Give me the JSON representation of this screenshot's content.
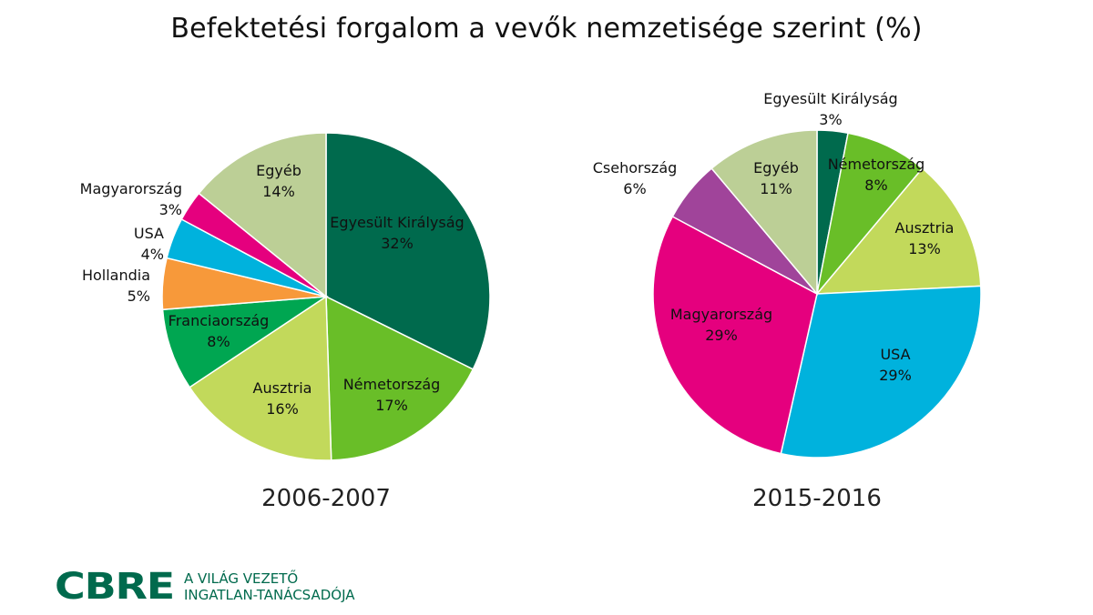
{
  "title": "Befektetési forgalom a vevők nemzetisége szerint (%)",
  "chart_data": [
    {
      "type": "pie",
      "title": "2006-2007",
      "slices": [
        {
          "label": "Egyesült Királyság",
          "value": 32,
          "color": "#006a4d"
        },
        {
          "label": "Németország",
          "value": 17,
          "color": "#69be28"
        },
        {
          "label": "Ausztria",
          "value": 16,
          "color": "#c2d95b"
        },
        {
          "label": "Franciaország",
          "value": 8,
          "color": "#00a651"
        },
        {
          "label": "Hollandia",
          "value": 5,
          "color": "#f7993a"
        },
        {
          "label": "USA",
          "value": 4,
          "color": "#00b2dd"
        },
        {
          "label": "Magyarország",
          "value": 3,
          "color": "#e5007e"
        },
        {
          "label": "Egyéb",
          "value": 14,
          "color": "#bccf96"
        }
      ]
    },
    {
      "type": "pie",
      "title": "2015-2016",
      "slices": [
        {
          "label": "Egyesült Királyság",
          "value": 3,
          "color": "#006a4d"
        },
        {
          "label": "Németország",
          "value": 8,
          "color": "#69be28"
        },
        {
          "label": "Ausztria",
          "value": 13,
          "color": "#c2d95b"
        },
        {
          "label": "USA",
          "value": 29,
          "color": "#00b2dd"
        },
        {
          "label": "Magyarország",
          "value": 29,
          "color": "#e5007e"
        },
        {
          "label": "Csehország",
          "value": 6,
          "color": "#a0449a"
        },
        {
          "label": "Egyéb",
          "value": 11,
          "color": "#bccf96"
        }
      ]
    }
  ],
  "logo": {
    "mark": "CBRE",
    "tagline_1": "A VILÁG VEZETŐ",
    "tagline_2": "INGATLAN-TANÁCSADÓJA"
  }
}
